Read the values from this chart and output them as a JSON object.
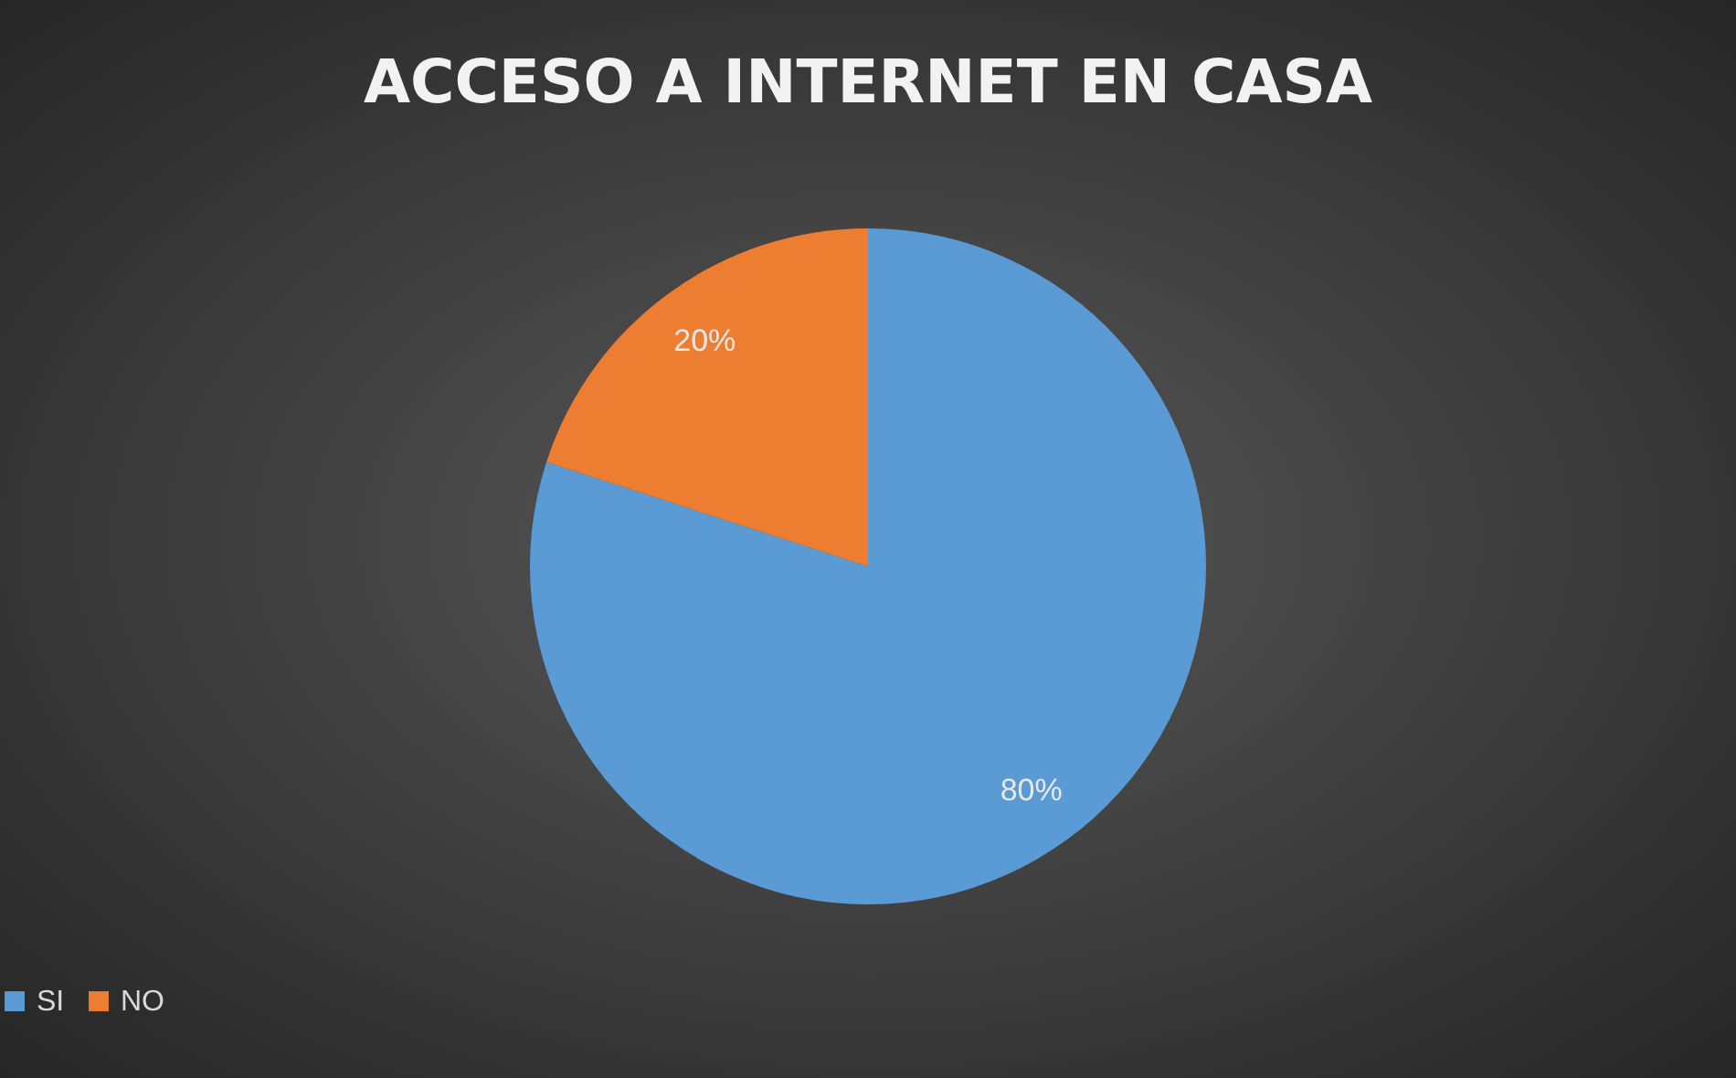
{
  "chart_data": {
    "type": "pie",
    "title": "ACCESO A INTERNET EN CASA",
    "categories": [
      "SI",
      "NO"
    ],
    "values": [
      80,
      20
    ],
    "colors": [
      "#5b9bd5",
      "#ed7d31"
    ],
    "value_labels": [
      "80%",
      "20%"
    ],
    "legend": "bottom"
  }
}
